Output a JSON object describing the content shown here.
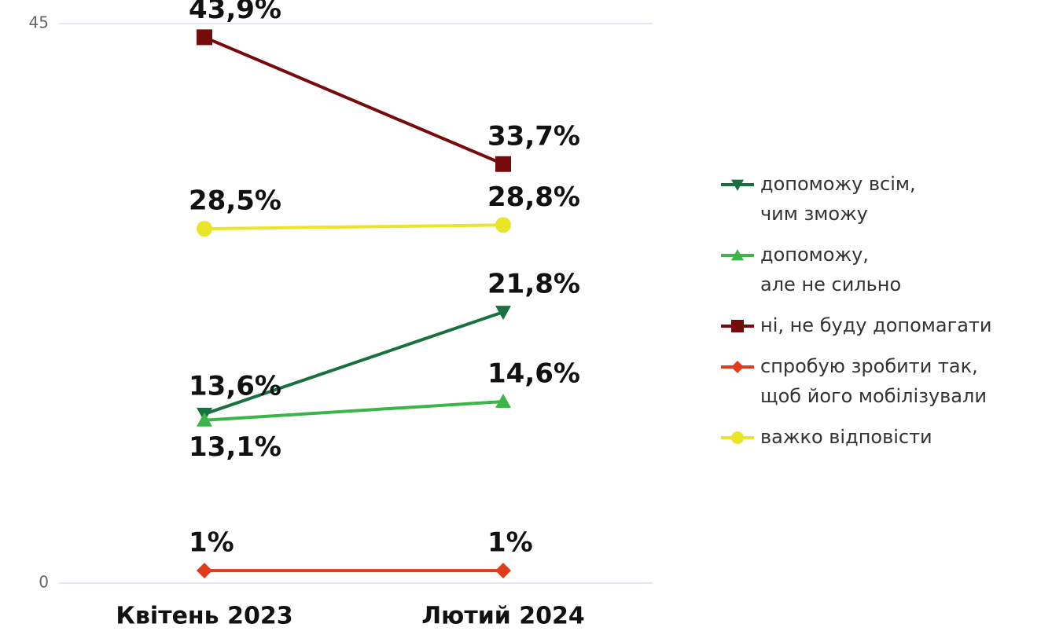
{
  "chart_data": {
    "type": "line",
    "categories": [
      "Квітень 2023",
      "Лютий 2024"
    ],
    "ylim": [
      0,
      45
    ],
    "yticks": [
      0,
      45
    ],
    "grid": true,
    "legend": "right",
    "series": [
      {
        "name": "допоможу всім,\nчим зможу",
        "color": "#17703d",
        "marker": "triangle-down",
        "values": [
          13.6,
          21.8
        ],
        "value_labels": [
          "13,6%",
          "21,8%"
        ]
      },
      {
        "name": "допоможу,\nале не сильно",
        "color": "#3cb449",
        "marker": "triangle-up",
        "values": [
          13.1,
          14.6
        ],
        "value_labels": [
          "13,1%",
          "14,6%"
        ]
      },
      {
        "name": "ні, не буду допомагати",
        "color": "#760b0b",
        "marker": "square",
        "values": [
          43.9,
          33.7
        ],
        "value_labels": [
          "43,9%",
          "33,7%"
        ]
      },
      {
        "name": "спробую зробити так,\nщоб його мобілізували",
        "color": "#e03c1c",
        "marker": "diamond",
        "values": [
          1,
          1
        ],
        "value_labels": [
          "1%",
          "1%"
        ]
      },
      {
        "name": "важко відповісти",
        "color": "#ebe52a",
        "marker": "circle",
        "values": [
          28.5,
          28.8
        ],
        "value_labels": [
          "28,5%",
          "28,8%"
        ]
      }
    ]
  }
}
